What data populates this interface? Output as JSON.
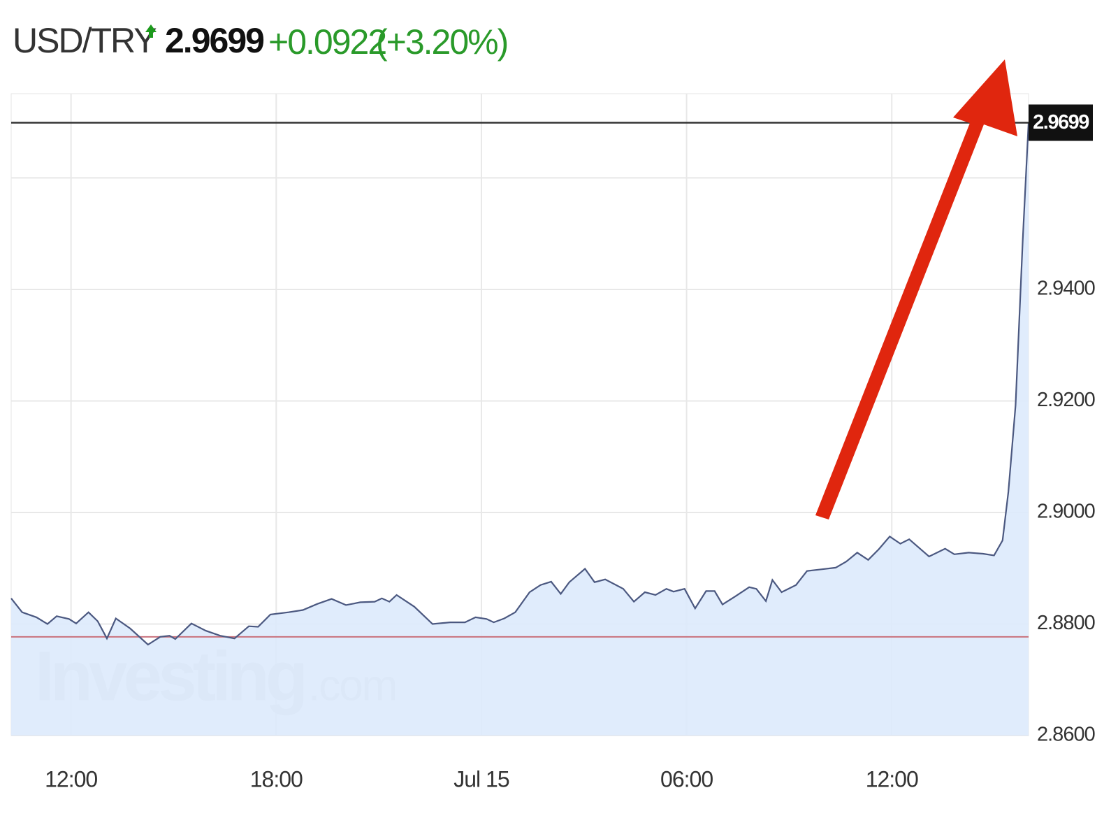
{
  "chart_data": {
    "type": "area",
    "title": "USD/TRY",
    "last_price": 2.9699,
    "change": "+0.0922",
    "change_pct": "(+3.20%)",
    "watermark": "Investing",
    "watermark_suffix": ".com",
    "line_color": "#4b5880",
    "fill_color": "#ddeafc",
    "reference_line": 2.8777,
    "reference_color": "#c9727d",
    "price_line_color": "#333333",
    "grid": true,
    "x": [
      10.25,
      10.57,
      10.99,
      11.31,
      11.58,
      11.94,
      12.15,
      12.51,
      12.78,
      13.05,
      13.31,
      13.73,
      14.25,
      14.61,
      14.88,
      15.05,
      15.52,
      15.94,
      16.36,
      16.78,
      17.2,
      17.47,
      17.83,
      18.36,
      18.78,
      19.2,
      19.62,
      20.04,
      20.46,
      20.88,
      21.09,
      21.31,
      21.52,
      22.04,
      22.57,
      23.09,
      23.52,
      23.83,
      24.15,
      24.36,
      24.67,
      24.99,
      25.41,
      25.73,
      26.04,
      26.32,
      26.57,
      27.03,
      27.31,
      27.62,
      28.15,
      28.46,
      28.78,
      29.09,
      29.41,
      29.62,
      29.94,
      30.25,
      30.57,
      30.82,
      31.05,
      31.41,
      31.83,
      32.04,
      32.32,
      32.51,
      32.78,
      33.2,
      33.52,
      33.94,
      34.36,
      34.67,
      34.99,
      35.31,
      35.62,
      35.94,
      36.25,
      36.51,
      37.09,
      37.56,
      37.83,
      38.25,
      38.67,
      38.99,
      39.24,
      39.41,
      39.62,
      39.83,
      40.0
    ],
    "values": [
      2.8846,
      2.8821,
      2.8812,
      2.88,
      2.8814,
      2.8809,
      2.8801,
      2.8821,
      2.8805,
      2.8774,
      2.881,
      2.8792,
      2.8763,
      2.8777,
      2.8779,
      2.8773,
      2.8801,
      2.8788,
      2.8779,
      2.8774,
      2.8796,
      2.8795,
      2.8817,
      2.8821,
      2.8825,
      2.8836,
      2.8845,
      2.8834,
      2.8839,
      2.884,
      2.8846,
      2.884,
      2.8852,
      2.8831,
      2.88,
      2.8803,
      2.8803,
      2.8812,
      2.8809,
      2.8803,
      2.881,
      2.8821,
      2.8857,
      2.887,
      2.8876,
      2.8854,
      2.8875,
      2.8899,
      2.8875,
      2.888,
      2.8863,
      2.884,
      2.8857,
      2.8852,
      2.8863,
      2.8858,
      2.8863,
      2.8828,
      2.8859,
      2.8859,
      2.8835,
      2.8849,
      2.8866,
      2.8863,
      2.8841,
      2.8879,
      2.8857,
      2.887,
      2.8895,
      2.8898,
      2.8901,
      2.8912,
      2.8928,
      2.8915,
      2.8934,
      2.8957,
      2.8944,
      2.8952,
      2.8921,
      2.8935,
      2.8925,
      2.8928,
      2.8926,
      2.8923,
      2.895,
      2.9037,
      2.9192,
      2.9489,
      2.9699
    ],
    "xlim": [
      10.25,
      40.0
    ],
    "xticks": [
      {
        "value": 12,
        "label": "12:00"
      },
      {
        "value": 18,
        "label": "18:00"
      },
      {
        "value": 24,
        "label": "Jul 15"
      },
      {
        "value": 30,
        "label": "06:00"
      },
      {
        "value": 36,
        "label": "12:00"
      }
    ],
    "ylim": [
      2.86,
      2.9751
    ],
    "yticks": [
      {
        "value": 2.86,
        "label": "2.8600"
      },
      {
        "value": 2.88,
        "label": "2.8800"
      },
      {
        "value": 2.9,
        "label": "2.9000"
      },
      {
        "value": 2.92,
        "label": "2.9200"
      },
      {
        "value": 2.94,
        "label": "2.9400"
      },
      {
        "value": 2.96,
        "label": null
      }
    ]
  }
}
